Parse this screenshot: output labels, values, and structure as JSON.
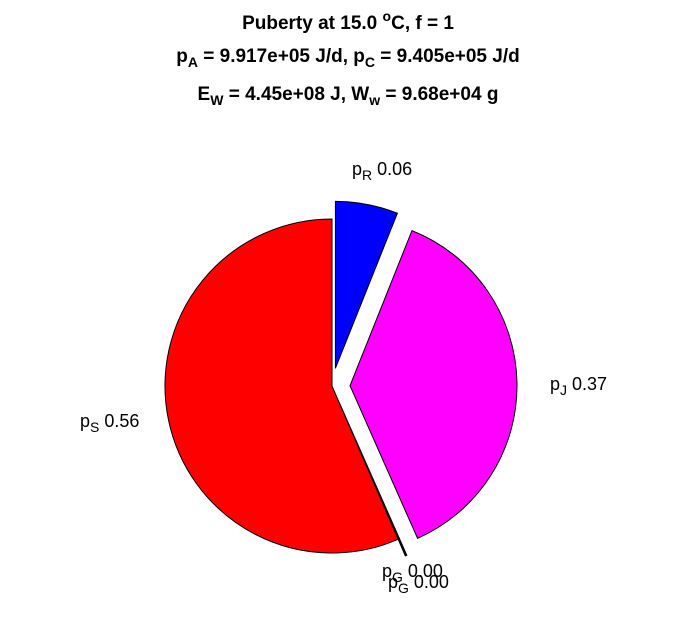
{
  "chart_data": {
    "type": "pie",
    "title_lines": [
      {
        "parts": [
          {
            "t": "Puberty at 15.0 "
          },
          {
            "t": "o",
            "sup": true
          },
          {
            "t": "C, f = 1"
          }
        ]
      },
      {
        "parts": [
          {
            "t": "p"
          },
          {
            "t": "A",
            "sub": true
          },
          {
            "t": " = 9.917e+05 J/d,  p"
          },
          {
            "t": "C",
            "sub": true
          },
          {
            "t": " = 9.405e+05 J/d"
          }
        ]
      },
      {
        "parts": [
          {
            "t": "E"
          },
          {
            "t": "W",
            "sub": true
          },
          {
            "t": " = 4.45e+08 J, W"
          },
          {
            "t": "w",
            "sub": true
          },
          {
            "t": " = 9.68e+04 g"
          }
        ]
      }
    ],
    "slices": [
      {
        "base": "p",
        "sub": "R",
        "value": 0.06,
        "value_label": "0.06",
        "color": "#0000ff",
        "exploded": true
      },
      {
        "base": "p",
        "sub": "J",
        "value": 0.37,
        "value_label": "0.37",
        "color": "#ff00ff",
        "exploded": true
      },
      {
        "base": "p",
        "sub": "G",
        "value": 0.001,
        "value_label": "0.00",
        "color": "#ffffff",
        "exploded": true
      },
      {
        "base": "p",
        "sub": "G",
        "value": 0.0005,
        "value_label": "0.00",
        "color": "#ffffff",
        "exploded": true
      },
      {
        "base": "p",
        "sub": "S",
        "value": 0.56,
        "value_label": "0.56",
        "color": "#ff0000",
        "exploded": false
      }
    ]
  }
}
